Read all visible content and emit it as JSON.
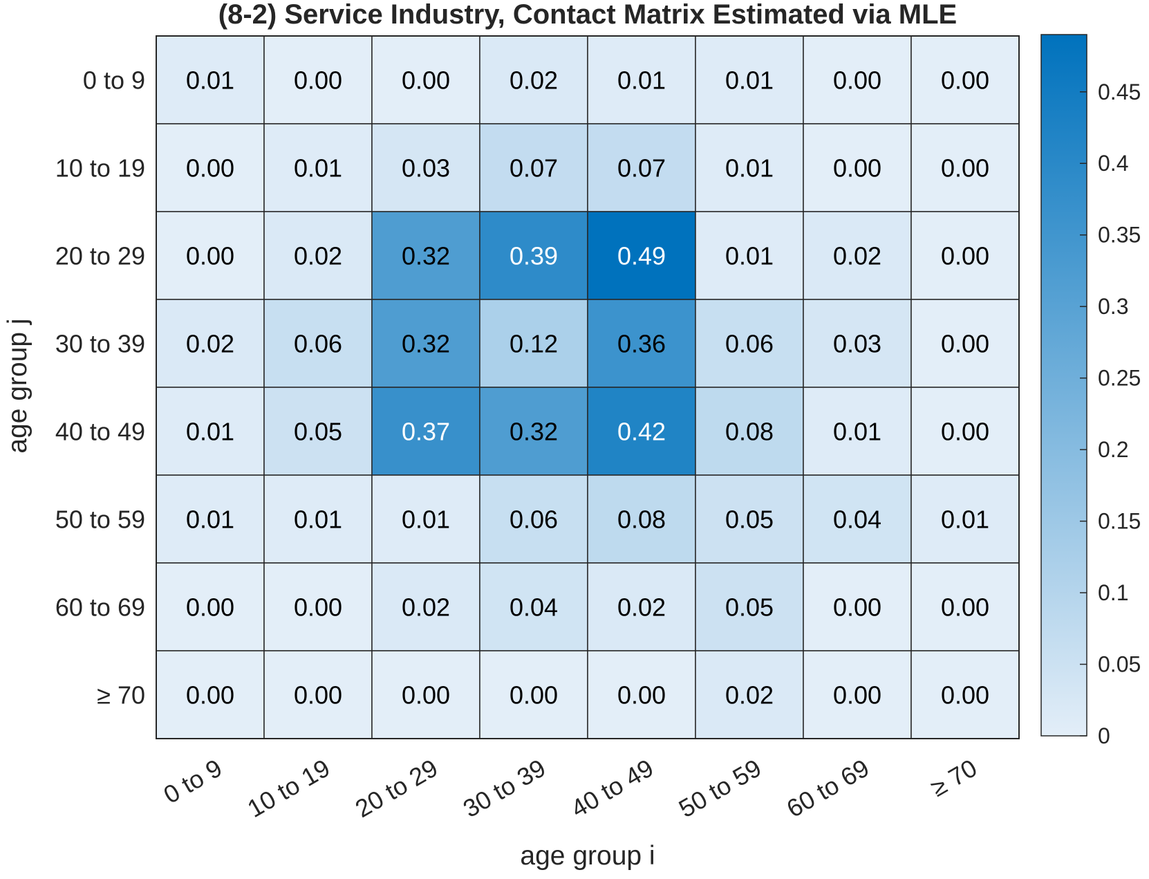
{
  "chart_data": {
    "type": "heatmap",
    "title": "(8-2) Service Industry, Contact Matrix Estimated via MLE",
    "xlabel": "age group i",
    "ylabel": "age group j",
    "x_categories": [
      "0 to 9",
      "10 to 19",
      "20 to 29",
      "30 to 39",
      "40 to 49",
      "50 to 59",
      "60 to 69",
      "≥ 70"
    ],
    "y_categories": [
      "0 to 9",
      "10 to 19",
      "20 to 29",
      "30 to 39",
      "40 to 49",
      "50 to 59",
      "60 to 69",
      "≥ 70"
    ],
    "values": [
      [
        "0.01",
        "0.00",
        "0.00",
        "0.02",
        "0.01",
        "0.01",
        "0.00",
        "0.00"
      ],
      [
        "0.00",
        "0.01",
        "0.03",
        "0.07",
        "0.07",
        "0.01",
        "0.00",
        "0.00"
      ],
      [
        "0.00",
        "0.02",
        "0.32",
        "0.39",
        "0.49",
        "0.01",
        "0.02",
        "0.00"
      ],
      [
        "0.02",
        "0.06",
        "0.32",
        "0.12",
        "0.36",
        "0.06",
        "0.03",
        "0.00"
      ],
      [
        "0.01",
        "0.05",
        "0.37",
        "0.32",
        "0.42",
        "0.08",
        "0.01",
        "0.00"
      ],
      [
        "0.01",
        "0.01",
        "0.01",
        "0.06",
        "0.08",
        "0.05",
        "0.04",
        "0.01"
      ],
      [
        "0.00",
        "0.00",
        "0.02",
        "0.04",
        "0.02",
        "0.05",
        "0.00",
        "0.00"
      ],
      [
        "0.00",
        "0.00",
        "0.00",
        "0.00",
        "0.00",
        "0.02",
        "0.00",
        "0.00"
      ]
    ],
    "colorbar": {
      "min": 0,
      "max": 0.49,
      "ticks": [
        0,
        0.05,
        0.1,
        0.15,
        0.2,
        0.25,
        0.3,
        0.35,
        0.4,
        0.45
      ],
      "tick_labels": [
        "0",
        "0.05",
        "0.1",
        "0.15",
        "0.2",
        "0.25",
        "0.3",
        "0.35",
        "0.4",
        "0.45"
      ],
      "color_low": "#e3eef8",
      "color_high": "#0072bd"
    },
    "grid": true
  }
}
